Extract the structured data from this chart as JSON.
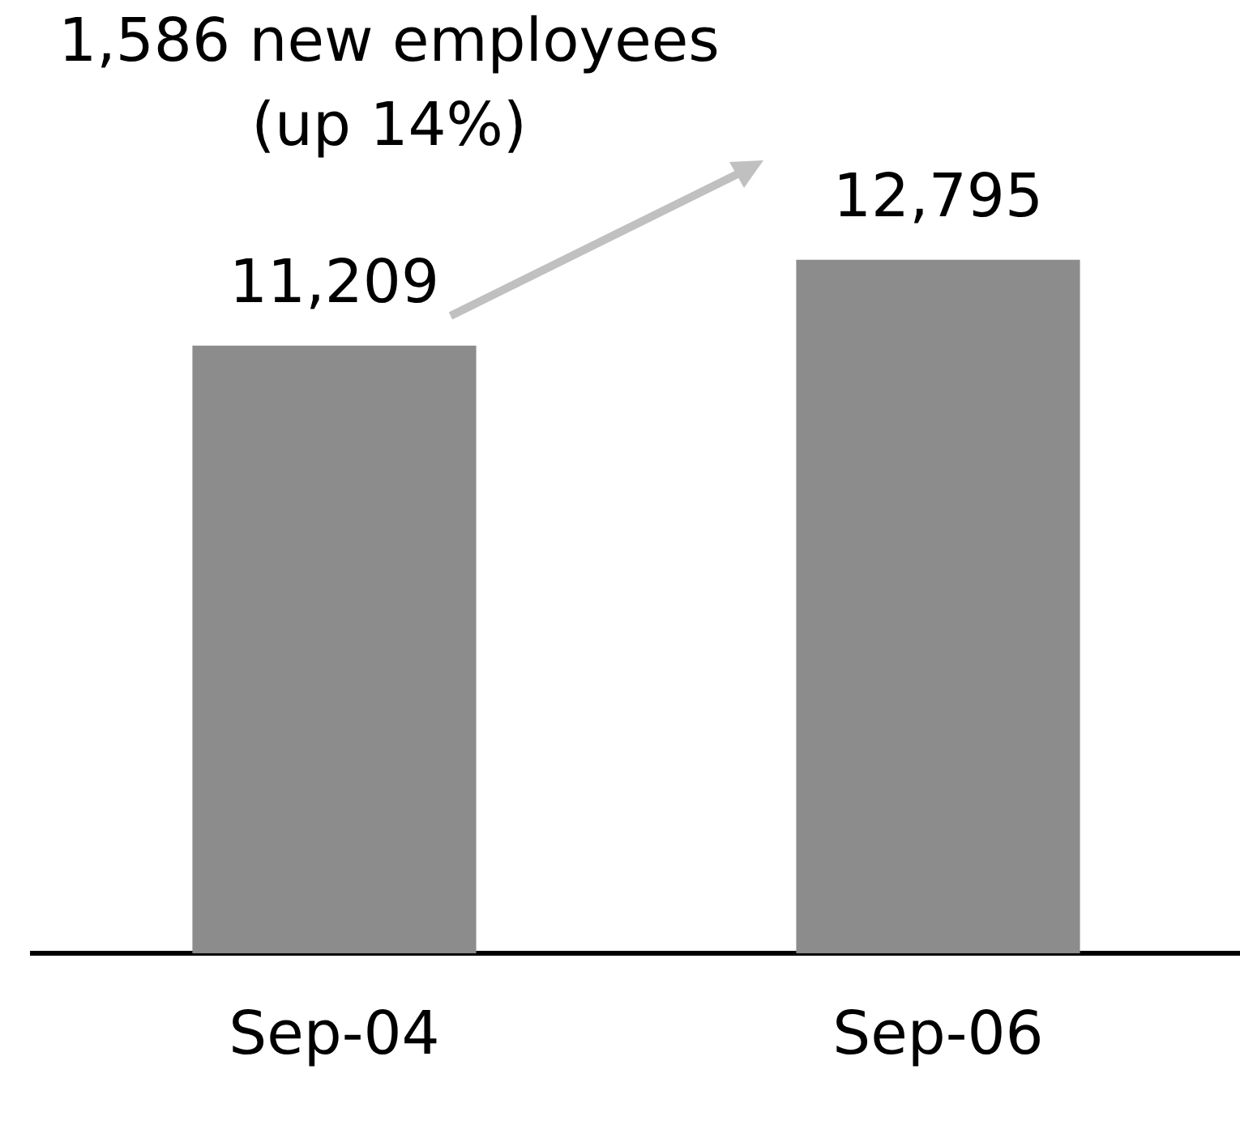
{
  "chart_data": {
    "type": "bar",
    "categories": [
      "Sep-04",
      "Sep-06"
    ],
    "values": [
      11209,
      12795
    ],
    "value_labels": [
      "11,209",
      "12,795"
    ],
    "color": "#8c8c8c",
    "tick_labels": "x",
    "grid": false,
    "legend": false,
    "annotations": [
      "1,586 new employees\n(up 14%)"
    ]
  }
}
